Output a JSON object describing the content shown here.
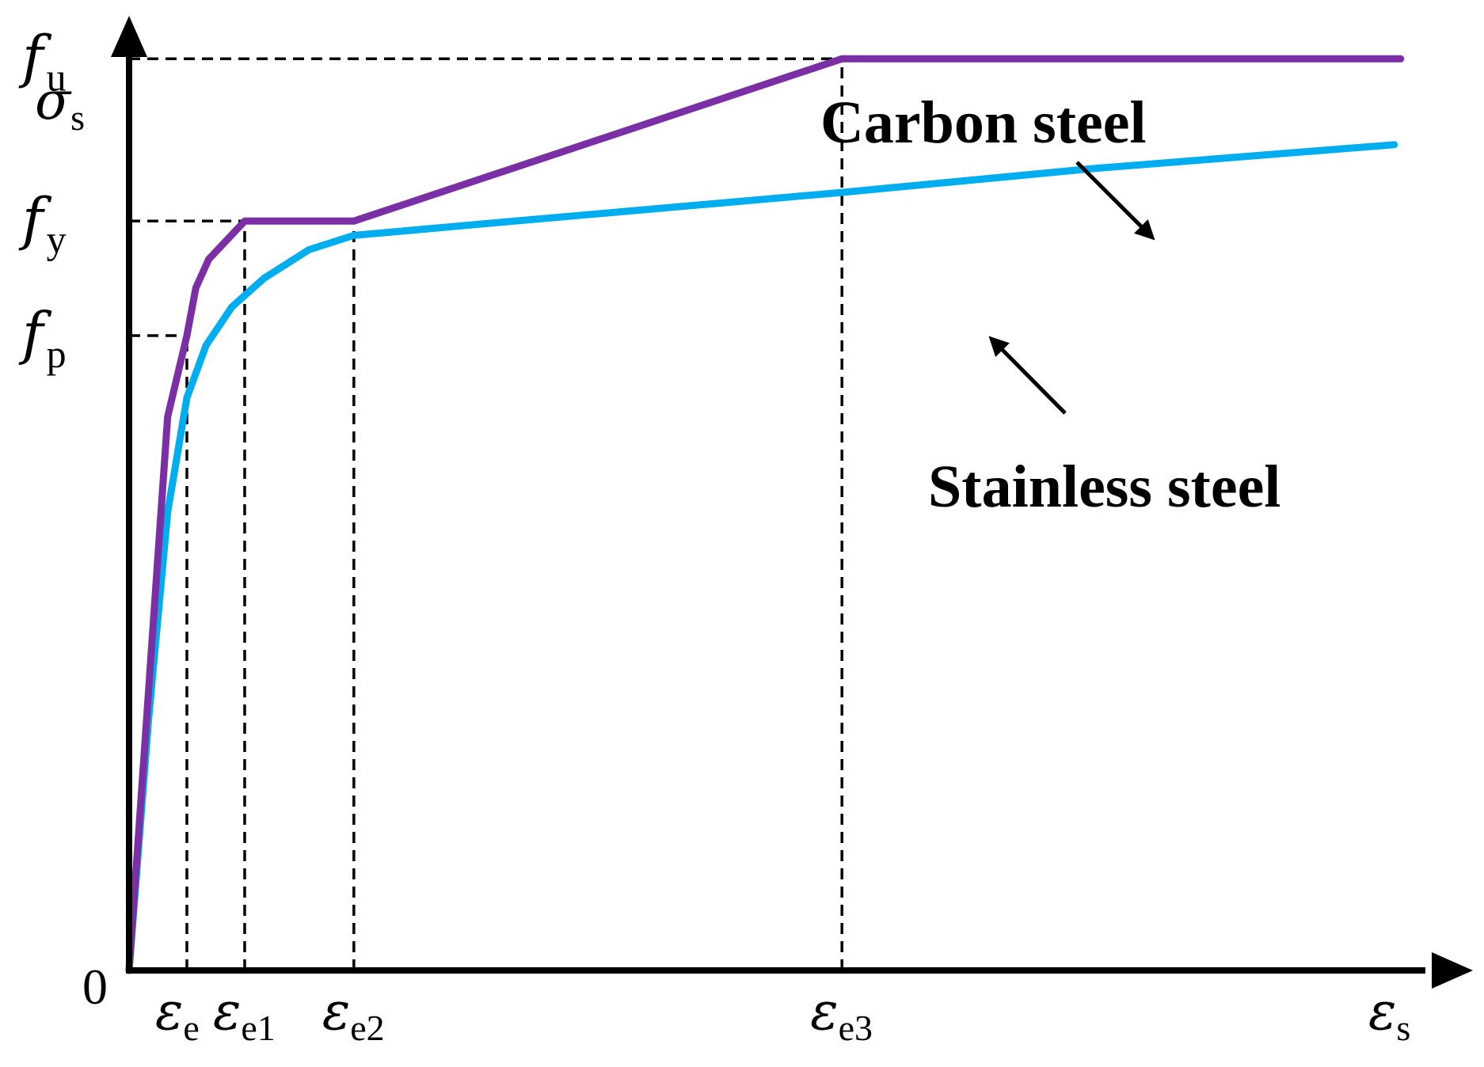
{
  "chart_data": {
    "type": "line",
    "title": "",
    "xlabel": {
      "symbol": "ε",
      "sub": "s"
    },
    "ylabel": {
      "symbol": "σ",
      "sub": "s"
    },
    "origin_label": "0",
    "xlim": [
      0,
      10
    ],
    "ylim": [
      0,
      10
    ],
    "grid": false,
    "x_ticks": [
      {
        "symbol": "ε",
        "sub": "e",
        "value": 0.45
      },
      {
        "symbol": "ε",
        "sub": "e1",
        "value": 0.9
      },
      {
        "symbol": "ε",
        "sub": "e2",
        "value": 1.75
      },
      {
        "symbol": "ε",
        "sub": "e3",
        "value": 5.55
      }
    ],
    "y_ticks": [
      {
        "symbol": "f",
        "sub": "p",
        "value": 6.65
      },
      {
        "symbol": "f",
        "sub": "y",
        "value": 7.85
      },
      {
        "symbol": "f",
        "sub": "u",
        "value": 9.55
      }
    ],
    "series": [
      {
        "name": "Carbon steel",
        "color": "#7B2FA5",
        "points": [
          [
            0,
            0
          ],
          [
            0.3,
            5.8
          ],
          [
            0.45,
            6.65
          ],
          [
            0.52,
            7.15
          ],
          [
            0.62,
            7.45
          ],
          [
            0.9,
            7.85
          ],
          [
            1.75,
            7.85
          ],
          [
            5.55,
            9.55
          ],
          [
            9.9,
            9.55
          ]
        ]
      },
      {
        "name": "Stainless steel",
        "color": "#00AEEF",
        "points": [
          [
            0,
            0
          ],
          [
            0.15,
            2.6
          ],
          [
            0.3,
            4.8
          ],
          [
            0.45,
            6.0
          ],
          [
            0.6,
            6.55
          ],
          [
            0.8,
            6.95
          ],
          [
            1.05,
            7.25
          ],
          [
            1.4,
            7.55
          ],
          [
            1.75,
            7.7
          ],
          [
            3.0,
            7.85
          ],
          [
            5.55,
            8.15
          ],
          [
            7.5,
            8.4
          ],
          [
            9.85,
            8.65
          ]
        ]
      }
    ],
    "annotations": [
      {
        "text": "Carbon steel",
        "series": "Carbon steel"
      },
      {
        "text": "Stainless steel",
        "series": "Stainless steel"
      }
    ]
  }
}
